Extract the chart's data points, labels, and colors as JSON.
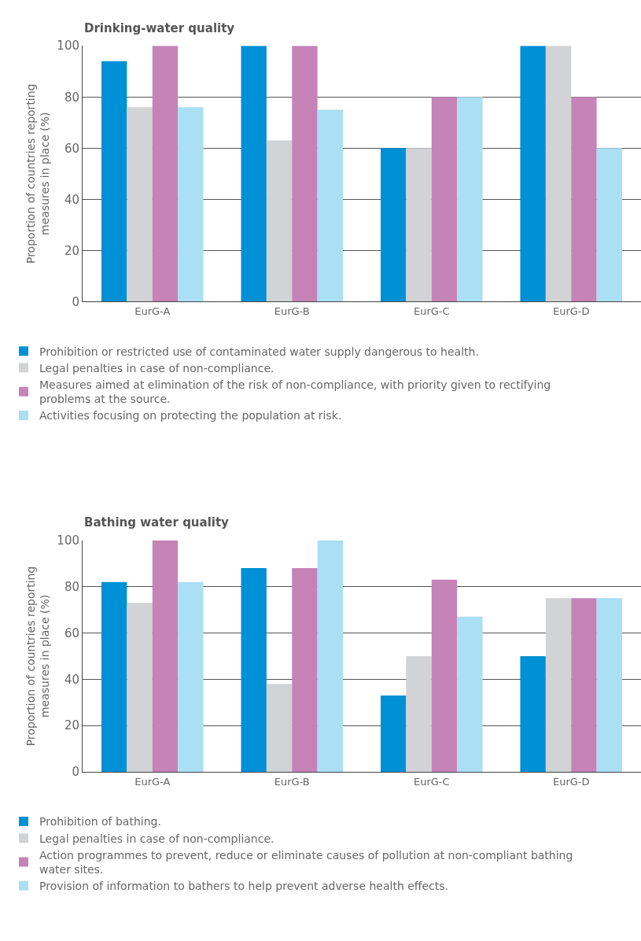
{
  "chart_data": [
    {
      "type": "bar",
      "title": "Drinking-water quality",
      "ylabel": "Proportion of countries reporting measures in place (%)",
      "categories": [
        "EurG-A",
        "EurG-B",
        "EurG-C",
        "EurG-D"
      ],
      "series": [
        {
          "name": "Prohibition or restricted use of contaminated water supply dangerous to health.",
          "color": "#0090d6",
          "values": [
            94,
            100,
            60,
            100
          ]
        },
        {
          "name": "Legal penalties in case of non-compliance.",
          "color": "#d1d3d4",
          "values": [
            76,
            63,
            60,
            100
          ]
        },
        {
          "name": "Measures aimed at elimination of the risk of non-compliance, with priority given to rectifying problems at the source.",
          "color": "#c583b8",
          "values": [
            100,
            100,
            80,
            80
          ]
        },
        {
          "name": "Activities focusing on protecting the population at risk.",
          "color": "#aadff4",
          "values": [
            76,
            75,
            80,
            60
          ]
        }
      ],
      "ylim": [
        0,
        100
      ],
      "yticks": [
        0,
        20,
        40,
        60,
        80,
        100
      ],
      "grid": "y",
      "legend": "bottom"
    },
    {
      "type": "bar",
      "title": "Bathing water quality",
      "ylabel": "Proportion of countries reporting measures in place (%)",
      "categories": [
        "EurG-A",
        "EurG-B",
        "EurG-C",
        "EurG-D"
      ],
      "series": [
        {
          "name": "Prohibition of bathing.",
          "color": "#0090d6",
          "values": [
            82,
            88,
            33,
            50
          ]
        },
        {
          "name": "Legal penalties in case of non-compliance.",
          "color": "#d1d3d4",
          "values": [
            73,
            38,
            50,
            75
          ]
        },
        {
          "name": "Action programmes to prevent, reduce or eliminate causes of pollution at non-compliant bathing water sites.",
          "color": "#c583b8",
          "values": [
            100,
            88,
            83,
            75
          ]
        },
        {
          "name": "Provision of information to bathers to help prevent adverse health effects.",
          "color": "#aadff4",
          "values": [
            82,
            100,
            67,
            75
          ]
        }
      ],
      "ylim": [
        0,
        100
      ],
      "yticks": [
        0,
        20,
        40,
        60,
        80,
        100
      ],
      "grid": "y",
      "legend": "bottom"
    }
  ]
}
